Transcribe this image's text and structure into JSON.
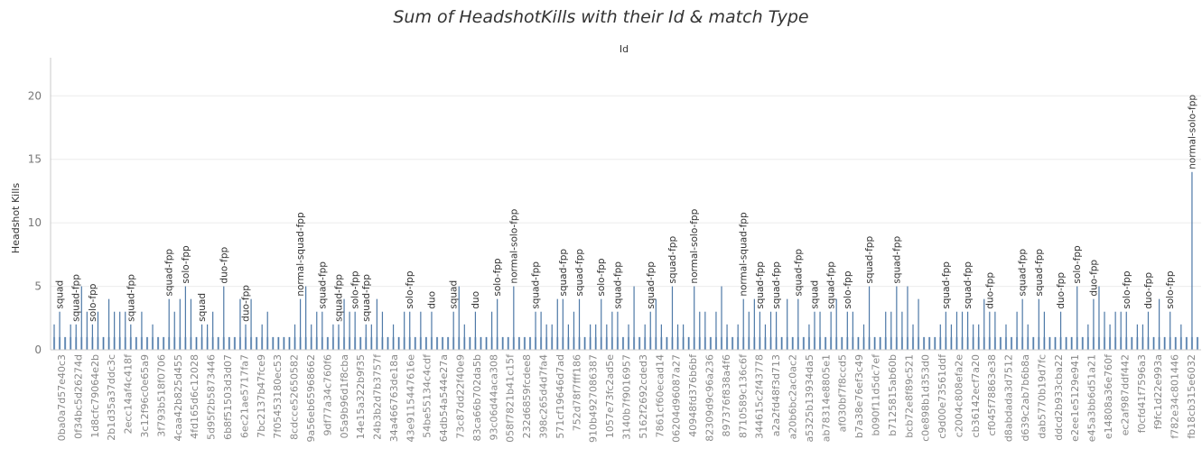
{
  "chart_data": {
    "type": "bar",
    "title": "Sum of HeadshotKills with their Id & match Type",
    "xlabel": "Id",
    "ylabel": "Headshot Kills",
    "ylim": [
      0,
      23
    ],
    "yticks": [
      0,
      5,
      10,
      15,
      20
    ],
    "grid": true,
    "colors": {
      "bar": "#4e79a7",
      "bar_light": "#a3bbd6",
      "grid": "#ececec",
      "axis": "#c8c8c8"
    },
    "labeled_bars": [
      {
        "id": "0ba0a7d57e40c3",
        "match_type": "squad",
        "value": 3
      },
      {
        "id": "0f34bc5d26274d",
        "match_type": "squad-fpp",
        "value": 2
      },
      {
        "id": "1d8cfc79064e2b",
        "match_type": "solo-fpp",
        "value": 2
      },
      {
        "id": "2b1d35a37ddc3c",
        "match_type": "squad-fpp",
        "value": 2
      },
      {
        "id": "2ecc14af4c418f",
        "match_type": "squad-fpp",
        "value": 4
      },
      {
        "id": "3c12f96c0e65a9",
        "match_type": "solo-fpp",
        "value": 5
      },
      {
        "id": "3f793b518f0706",
        "match_type": "squad",
        "value": 2
      },
      {
        "id": "4caa42b825d455",
        "match_type": "duo-fpp",
        "value": 5
      },
      {
        "id": "4fd165d6c12028",
        "match_type": "duo-fpp",
        "value": 2
      },
      {
        "id": "5d95f2b5873446",
        "match_type": "normal-squad-fpp",
        "value": 4
      },
      {
        "id": "6b8f51503d3d07",
        "match_type": "squad-fpp",
        "value": 3
      },
      {
        "id": "6ec21ae5717fa7",
        "match_type": "squad-fpp",
        "value": 2
      },
      {
        "id": "7bc2137b47fce9",
        "match_type": "solo-fpp",
        "value": 3
      },
      {
        "id": "7f05453180ec53",
        "match_type": "squad-fpp",
        "value": 2
      },
      {
        "id": "8cdcce52650582",
        "match_type": "solo-fpp",
        "value": 3
      },
      {
        "id": "9a56eb65968662",
        "match_type": "duo",
        "value": 3
      },
      {
        "id": "9df77a34c760f6",
        "match_type": "squad",
        "value": 3
      },
      {
        "id": "05a9b96d1f8cba",
        "match_type": "duo",
        "value": 3
      },
      {
        "id": "14e15a322b9f35",
        "match_type": "solo-fpp",
        "value": 4
      },
      {
        "id": "24b3b2d7b3757f",
        "match_type": "normal-solo-fpp",
        "value": 5
      },
      {
        "id": "34a466763de18a",
        "match_type": "squad-fpp",
        "value": 3
      },
      {
        "id": "43e9115447616e",
        "match_type": "squad-fpp",
        "value": 4
      },
      {
        "id": "54be55134c4cdf",
        "match_type": "squad-fpp",
        "value": 4
      },
      {
        "id": "64db54a544e27a",
        "match_type": "solo-fpp",
        "value": 4
      },
      {
        "id": "73c87dd22f40e9",
        "match_type": "squad-fpp",
        "value": 3
      },
      {
        "id": "83ca66b702da5b",
        "match_type": "squad-fpp",
        "value": 3
      },
      {
        "id": "93c06d44aca308",
        "match_type": "squad-fpp",
        "value": 5
      },
      {
        "id": "058f7821b41c15f",
        "match_type": "normal-solo-fpp",
        "value": 5
      },
      {
        "id": "232d6859fcdee8",
        "match_type": "squad-fpp",
        "value": 3
      },
      {
        "id": "398c265d4d7fa4",
        "match_type": "normal-squad-fpp",
        "value": 4
      },
      {
        "id": "571cf19646d7ad",
        "match_type": "squad-fpp",
        "value": 3
      },
      {
        "id": "752d78f7fff186",
        "match_type": "squad-fpp",
        "value": 3
      },
      {
        "id": "910b4927086387",
        "match_type": "squad-fpp",
        "value": 4
      },
      {
        "id": "1057e73fc2ad5e",
        "match_type": "squad",
        "value": 3
      },
      {
        "id": "3140b7f9016957",
        "match_type": "squad-fpp",
        "value": 3
      },
      {
        "id": "5162f2692cded3",
        "match_type": "solo-fpp",
        "value": 3
      },
      {
        "id": "7861cf60ecad14",
        "match_type": "squad-fpp",
        "value": 5
      },
      {
        "id": "06204d96087a27",
        "match_type": "squad-fpp",
        "value": 5
      },
      {
        "id": "40948fd376b6bf",
        "match_type": "squad-fpp",
        "value": 2
      },
      {
        "id": "82309d9c96a236",
        "match_type": "squad-fpp",
        "value": 3
      },
      {
        "id": "897376f838a4f6",
        "match_type": "duo-fpp",
        "value": 3
      },
      {
        "id": "8710589c136c6f",
        "match_type": "squad-fpp",
        "value": 4
      },
      {
        "id": "344615c2f43778",
        "match_type": "duo-fpp",
        "value": 3
      },
      {
        "id": "a2a2fd48f3d713",
        "match_type": "solo-fpp",
        "value": 5
      },
      {
        "id": "a20b6bc2ac0ac2",
        "match_type": "duo-fpp",
        "value": 4
      },
      {
        "id": "a5325b13934da5",
        "match_type": "solo-fpp",
        "value": 3
      },
      {
        "id": "ab78314e8805e1",
        "match_type": "duo-fpp",
        "value": 3
      },
      {
        "id": "af030bf7f8ccd5",
        "match_type": "solo-fpp",
        "value": 3
      },
      {
        "id": "fb18cb315e6032",
        "match_type": "normal-solo-fpp",
        "value": 14
      }
    ],
    "x_tick_labels": [
      "0ba0a7d57e40c3",
      "0f34bc5d26274d",
      "1d8cfc79064e2b",
      "2b1d35a37ddc3c",
      "2ecc14af4c418f",
      "3c12f96c0e65a9",
      "3f793b518f0706",
      "4caa42b825d455",
      "4fd165d6c12028",
      "5d95f2b5873446",
      "6b8f51503d3d07",
      "6ec21ae5717fa7",
      "7bc2137b47fce9",
      "7f05453180ec53",
      "8cdcce52650582",
      "9a56eb65968662",
      "9df77a34c760f6",
      "05a9b96d1f8cba",
      "14e15a322b9f35",
      "24b3b2d7b3757f",
      "34a466763de18a",
      "43e9115447616e",
      "54be55134c4cdf",
      "64db54a544e27a",
      "73c87dd22f40e9",
      "83ca66b702da5b",
      "93c06d44aca308",
      "058f7821b41c15f",
      "232d6859fcdee8",
      "398c265d4d7fa4",
      "571cf19646d7ad",
      "752d78f7fff186",
      "910b4927086387",
      "1057e73fc2ad5e",
      "3140b7f9016957",
      "5162f2692cded3",
      "7861cf60ecad14",
      "06204d96087a27",
      "40948fd376b6bf",
      "82309d9c96a236",
      "897376f838a4f6",
      "8710589c136c6f",
      "344615c2f43778",
      "a2a2fd48f3d713",
      "a20b6bc2ac0ac2",
      "a5325b13934da5",
      "ab78314e8805e1",
      "af030bf7f8ccd5",
      "b7a38e76ef3c49",
      "b090f11d5dc7ef",
      "b7125815ab60b",
      "bcb72e8f89c521",
      "c0e898b1d353d0",
      "c9d00e73561ddf",
      "c2004c808efa2e",
      "cb36142ecf7a20",
      "cf045f78863e38",
      "d8abdada3d7512",
      "d639c2ab7b6b8a",
      "dab5770b19d7fc",
      "ddcd2b933cba22",
      "e2ee1e5129e941",
      "e45a3bb6d51a21",
      "e14808a36e760f",
      "ec2af987ddf442",
      "f0cfd41f7596a3",
      "f9fc1d22e993a",
      "f782e34c801446",
      "fb18cb315e6032"
    ],
    "top_labels": [
      {
        "text": "squad",
        "x": 1,
        "v": 3
      },
      {
        "text": "squad-fpp",
        "x": 4,
        "v": 2
      },
      {
        "text": "solo-fpp",
        "x": 7,
        "v": 2
      },
      {
        "text": "squad-fpp",
        "x": 14,
        "v": 2
      },
      {
        "text": "squad-fpp",
        "x": 21,
        "v": 4
      },
      {
        "text": "solo-fpp",
        "x": 24,
        "v": 5
      },
      {
        "text": "squad",
        "x": 27,
        "v": 2
      },
      {
        "text": "duo-fpp",
        "x": 31,
        "v": 5
      },
      {
        "text": "duo-fpp",
        "x": 35,
        "v": 2
      },
      {
        "text": "normal-squad-fpp",
        "x": 45,
        "v": 4
      },
      {
        "text": "squad-fpp",
        "x": 49,
        "v": 3
      },
      {
        "text": "squad-fpp",
        "x": 52,
        "v": 2
      },
      {
        "text": "solo-fpp",
        "x": 55,
        "v": 3
      },
      {
        "text": "squad-fpp",
        "x": 57,
        "v": 2
      },
      {
        "text": "solo-fpp",
        "x": 65,
        "v": 3
      },
      {
        "text": "duo",
        "x": 69,
        "v": 3
      },
      {
        "text": "squad",
        "x": 73,
        "v": 3
      },
      {
        "text": "duo",
        "x": 77,
        "v": 3
      },
      {
        "text": "solo-fpp",
        "x": 81,
        "v": 4
      },
      {
        "text": "normal-solo-fpp",
        "x": 84,
        "v": 5
      },
      {
        "text": "squad-fpp",
        "x": 88,
        "v": 3
      },
      {
        "text": "squad-fpp",
        "x": 93,
        "v": 4
      },
      {
        "text": "squad-fpp",
        "x": 96,
        "v": 4
      },
      {
        "text": "solo-fpp",
        "x": 100,
        "v": 4
      },
      {
        "text": "squad-fpp",
        "x": 103,
        "v": 3
      },
      {
        "text": "squad-fpp",
        "x": 109,
        "v": 3
      },
      {
        "text": "squad-fpp",
        "x": 113,
        "v": 5
      },
      {
        "text": "normal-solo-fpp",
        "x": 117,
        "v": 5
      },
      {
        "text": "normal-squad-fpp",
        "x": 126,
        "v": 4
      },
      {
        "text": "squad-fpp",
        "x": 129,
        "v": 3
      },
      {
        "text": "squad-fpp",
        "x": 132,
        "v": 3
      },
      {
        "text": "squad-fpp",
        "x": 136,
        "v": 4
      },
      {
        "text": "squad",
        "x": 139,
        "v": 3
      },
      {
        "text": "squad-fpp",
        "x": 142,
        "v": 3
      },
      {
        "text": "solo-fpp",
        "x": 145,
        "v": 3
      },
      {
        "text": "squad-fpp",
        "x": 149,
        "v": 5
      },
      {
        "text": "squad-fpp",
        "x": 154,
        "v": 5
      },
      {
        "text": "squad-fpp",
        "x": 163,
        "v": 3
      },
      {
        "text": "squad-fpp",
        "x": 167,
        "v": 3
      },
      {
        "text": "duo-fpp",
        "x": 171,
        "v": 3
      },
      {
        "text": "squad-fpp",
        "x": 177,
        "v": 4
      },
      {
        "text": "squad-fpp",
        "x": 180,
        "v": 4
      },
      {
        "text": "duo-fpp",
        "x": 184,
        "v": 3
      },
      {
        "text": "solo-fpp",
        "x": 187,
        "v": 5
      },
      {
        "text": "duo-fpp",
        "x": 190,
        "v": 4
      },
      {
        "text": "solo-fpp",
        "x": 196,
        "v": 3
      },
      {
        "text": "duo-fpp",
        "x": 200,
        "v": 3
      },
      {
        "text": "solo-fpp",
        "x": 204,
        "v": 3
      },
      {
        "text": "normal-solo-fpp",
        "x": 208,
        "v": 14
      }
    ]
  }
}
